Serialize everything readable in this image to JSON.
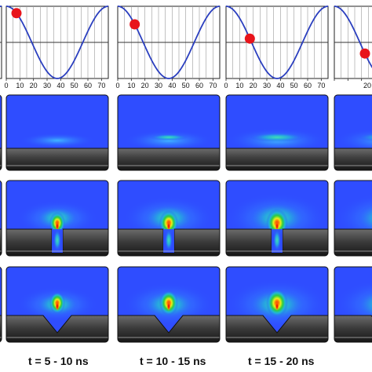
{
  "chart_data": {
    "type": "line",
    "x_ticks": [
      "0",
      "10",
      "20",
      "30",
      "40",
      "50",
      "60",
      "70"
    ],
    "xlim": [
      0,
      75
    ],
    "ylim": [
      -1,
      1
    ],
    "grid": true,
    "curve": {
      "function": "cos",
      "period": 75,
      "amplitude": 1,
      "color": "#2b3fbf"
    },
    "panels": [
      {
        "column": 0,
        "marker_x": null,
        "label": ""
      },
      {
        "column": 1,
        "marker_x": 7.5,
        "label": "t = 5 - 10 ns"
      },
      {
        "column": 2,
        "marker_x": 12.5,
        "label": "t = 10 - 15 ns"
      },
      {
        "column": 3,
        "marker_x": 17.5,
        "label": "t = 15 - 20 ns"
      },
      {
        "column": 4,
        "marker_x": 22.5,
        "label": ""
      }
    ],
    "marker_color": "#e8141b",
    "image_rows": [
      {
        "electrode": "flat"
      },
      {
        "electrode": "slot"
      },
      {
        "electrode": "v-groove"
      }
    ],
    "partial_tick_text": "20"
  }
}
